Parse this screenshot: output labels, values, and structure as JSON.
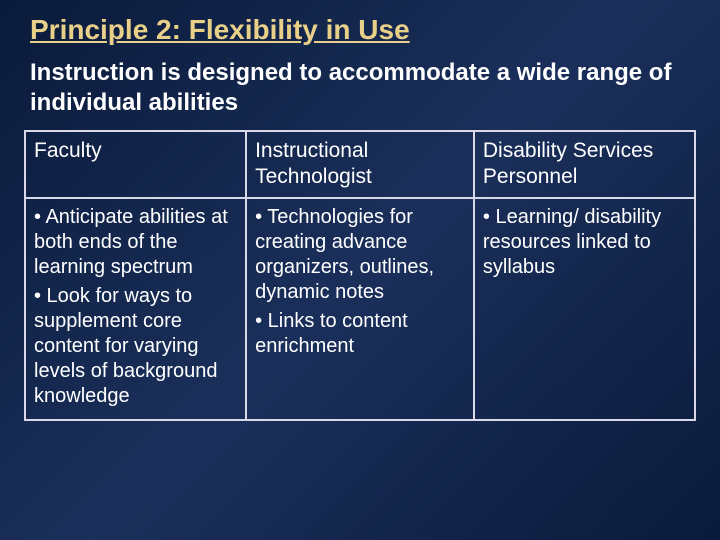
{
  "colors": {
    "background_gradient_start": "#0a1a3a",
    "background_gradient_mid": "#1a2f5a",
    "background_gradient_end": "#0a1a3a",
    "title_color": "#e8d088",
    "text_color": "#ffffff",
    "table_border_color": "#d8d8e8"
  },
  "typography": {
    "title_fontsize": 28,
    "subtitle_fontsize": 24,
    "header_fontsize": 21,
    "body_fontsize": 20,
    "font_family": "Verdana"
  },
  "title": "Principle 2: Flexibility in Use",
  "subtitle": "Instruction is designed to accommodate a wide range of individual abilities",
  "table": {
    "columns": [
      "Faculty",
      "Instructional Technologist",
      "Disability Services Personnel"
    ],
    "rows": [
      {
        "faculty": [
          "• Anticipate abilities at both ends of the learning spectrum",
          "• Look for ways to supplement core content for varying levels of background knowledge"
        ],
        "tech": [
          "• Technologies for creating advance organizers, outlines, dynamic notes",
          "• Links to content enrichment"
        ],
        "disability": [
          "• Learning/ disability resources   linked to syllabus"
        ]
      }
    ]
  }
}
